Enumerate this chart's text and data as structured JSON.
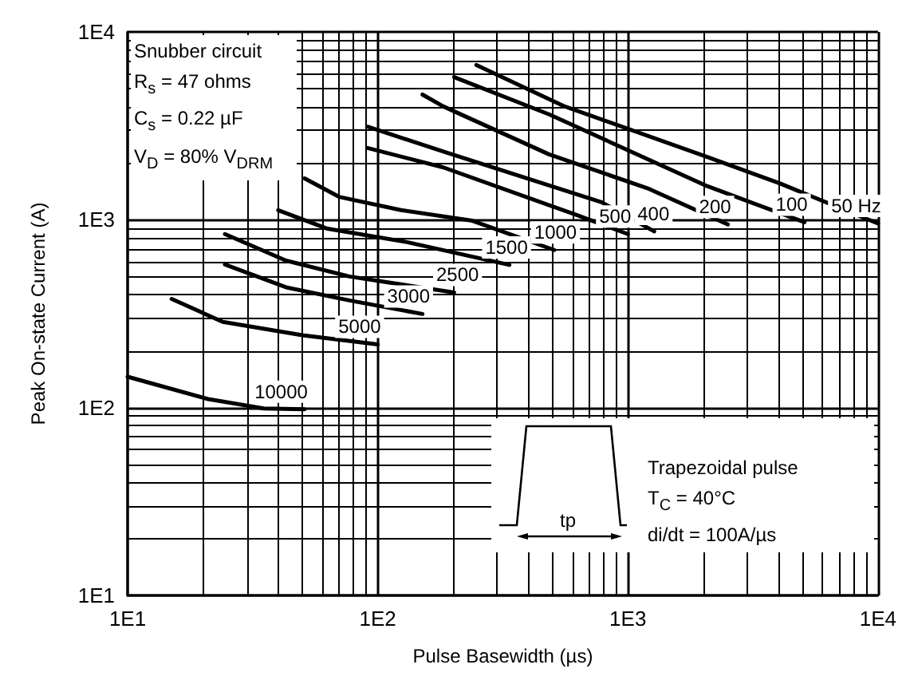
{
  "chart_data": {
    "type": "line",
    "xlabel": "Pulse Basewidth (µs)",
    "ylabel": "Peak On-state Current (A)",
    "log": "xy",
    "xlim": [
      10,
      10000
    ],
    "ylim": [
      10,
      10000
    ],
    "xticks": [
      {
        "value": 10,
        "label": "1E1"
      },
      {
        "value": 100,
        "label": "1E2"
      },
      {
        "value": 1000,
        "label": "1E3"
      },
      {
        "value": 10000,
        "label": "1E4"
      }
    ],
    "yticks": [
      {
        "value": 10,
        "label": "1E1"
      },
      {
        "value": 100,
        "label": "1E2"
      },
      {
        "value": 1000,
        "label": "1E3"
      },
      {
        "value": 10000,
        "label": "1E4"
      }
    ],
    "grid": true,
    "legend": false,
    "marker": "none",
    "line_style": "solid",
    "series": [
      {
        "name": "50 Hz",
        "color": "#000000",
        "x": [
          248,
          560,
          2075,
          4060,
          10000
        ],
        "values": [
          6670,
          4010,
          2160,
          1560,
          955
        ]
      },
      {
        "name": "100",
        "color": "#000000",
        "x": [
          202,
          484,
          2075,
          5080
        ],
        "values": [
          5750,
          3640,
          1510,
          970
        ]
      },
      {
        "name": "200",
        "color": "#000000",
        "x": [
          151,
          183,
          484,
          1216,
          2510
        ],
        "values": [
          4640,
          4010,
          2230,
          1460,
          944
        ]
      },
      {
        "name": "400",
        "color": "#000000",
        "x": [
          91,
          183,
          785,
          1274
        ],
        "values": [
          3130,
          2310,
          1240,
          867
        ]
      },
      {
        "name": "500",
        "color": "#000000",
        "x": [
          91,
          183,
          631,
          1000
        ],
        "values": [
          2410,
          1900,
          1054,
          839
        ]
      },
      {
        "name": "1000",
        "color": "#000000",
        "x": [
          51,
          70,
          124,
          239,
          508
        ],
        "values": [
          1660,
          1325,
          1125,
          988,
          690
        ]
      },
      {
        "name": "1500",
        "color": "#000000",
        "x": [
          40,
          63,
          131,
          336
        ],
        "values": [
          1125,
          896,
          760,
          575
        ]
      },
      {
        "name": "2500",
        "color": "#000000",
        "x": [
          24.5,
          43,
          77,
          202
        ],
        "values": [
          839,
          606,
          499,
          410
        ]
      },
      {
        "name": "3000",
        "color": "#000000",
        "x": [
          24.5,
          43,
          77,
          151
        ],
        "values": [
          578,
          437,
          372,
          315
        ]
      },
      {
        "name": "5000",
        "color": "#000000",
        "x": [
          15,
          24,
          50,
          100
        ],
        "values": [
          379,
          286,
          243,
          217
        ]
      },
      {
        "name": "10000",
        "color": "#000000",
        "x": [
          10,
          21,
          35,
          51
        ],
        "values": [
          146,
          111,
          99,
          98
        ]
      }
    ],
    "annotations": [
      "Snubber circuit",
      "R$_{s}$ = 47 ohms",
      "C$_{s}$ = 0.22 µF",
      "V$_{D}$ = 80% V$_{DRM}$",
      "Trapezoidal pulse",
      "T$_{C}$ = 40°C",
      "di/dt = 100A/µs",
      "tp"
    ]
  }
}
